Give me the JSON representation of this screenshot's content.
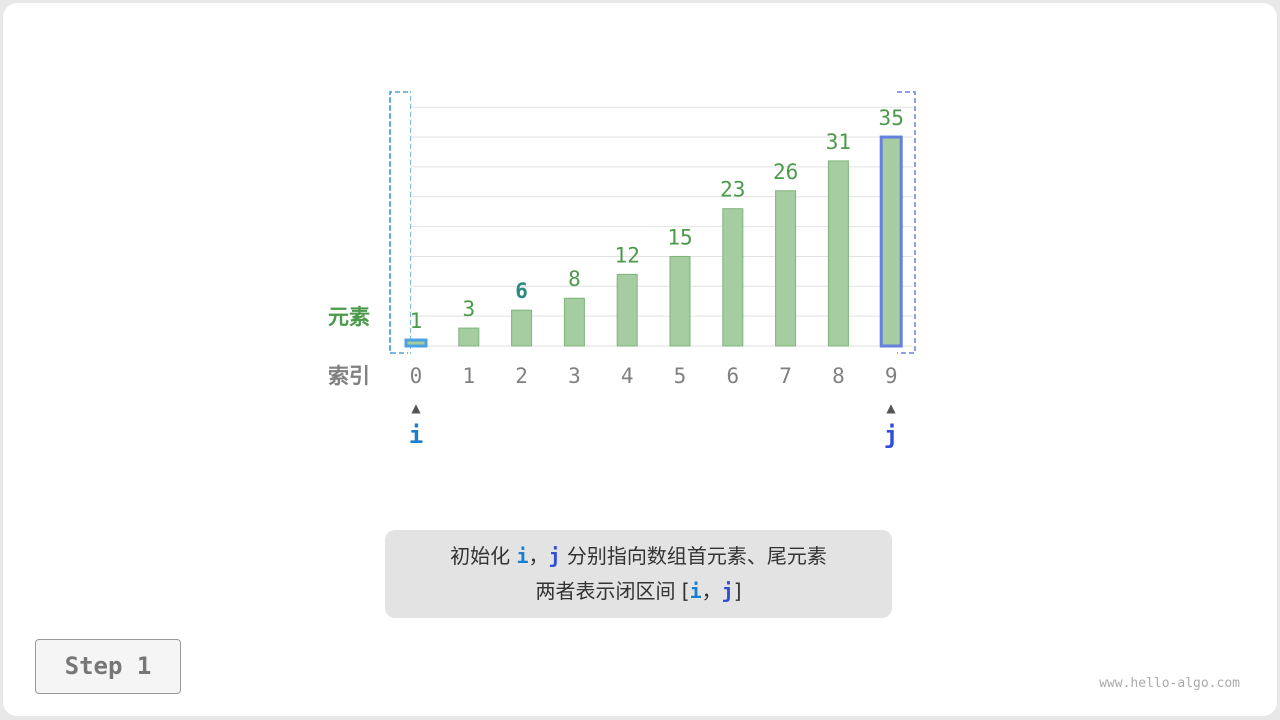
{
  "labels": {
    "elements": "元素",
    "index": "索引",
    "i": "i",
    "j": "j"
  },
  "array": [
    1,
    3,
    6,
    8,
    12,
    15,
    23,
    26,
    31,
    35
  ],
  "indices": [
    "0",
    "1",
    "2",
    "3",
    "4",
    "5",
    "6",
    "7",
    "8",
    "9"
  ],
  "highlight": {
    "i_index": 0,
    "j_index": 9,
    "emphasized_value_index": 2
  },
  "colors": {
    "bar": "#a5cda1",
    "bar_border": "#7db478",
    "value_text": "#4a9a4a",
    "emphasized_value": "#2d8a80",
    "i": "#1a7fd0",
    "j": "#2f4fd8",
    "i_bar_border": "#4aa3e0",
    "j_bar_border": "#6680e0",
    "index_text": "#808080"
  },
  "caption": {
    "line1_pre": "初始化 ",
    "i": "i",
    "comma": "，",
    "j": "j",
    "line1_post": " 分别指向数组首元素、尾元素",
    "line2_pre": "两者表示闭区间 [",
    "line2_post": "]"
  },
  "step": "Step 1",
  "watermark": "www.hello-algo.com"
}
